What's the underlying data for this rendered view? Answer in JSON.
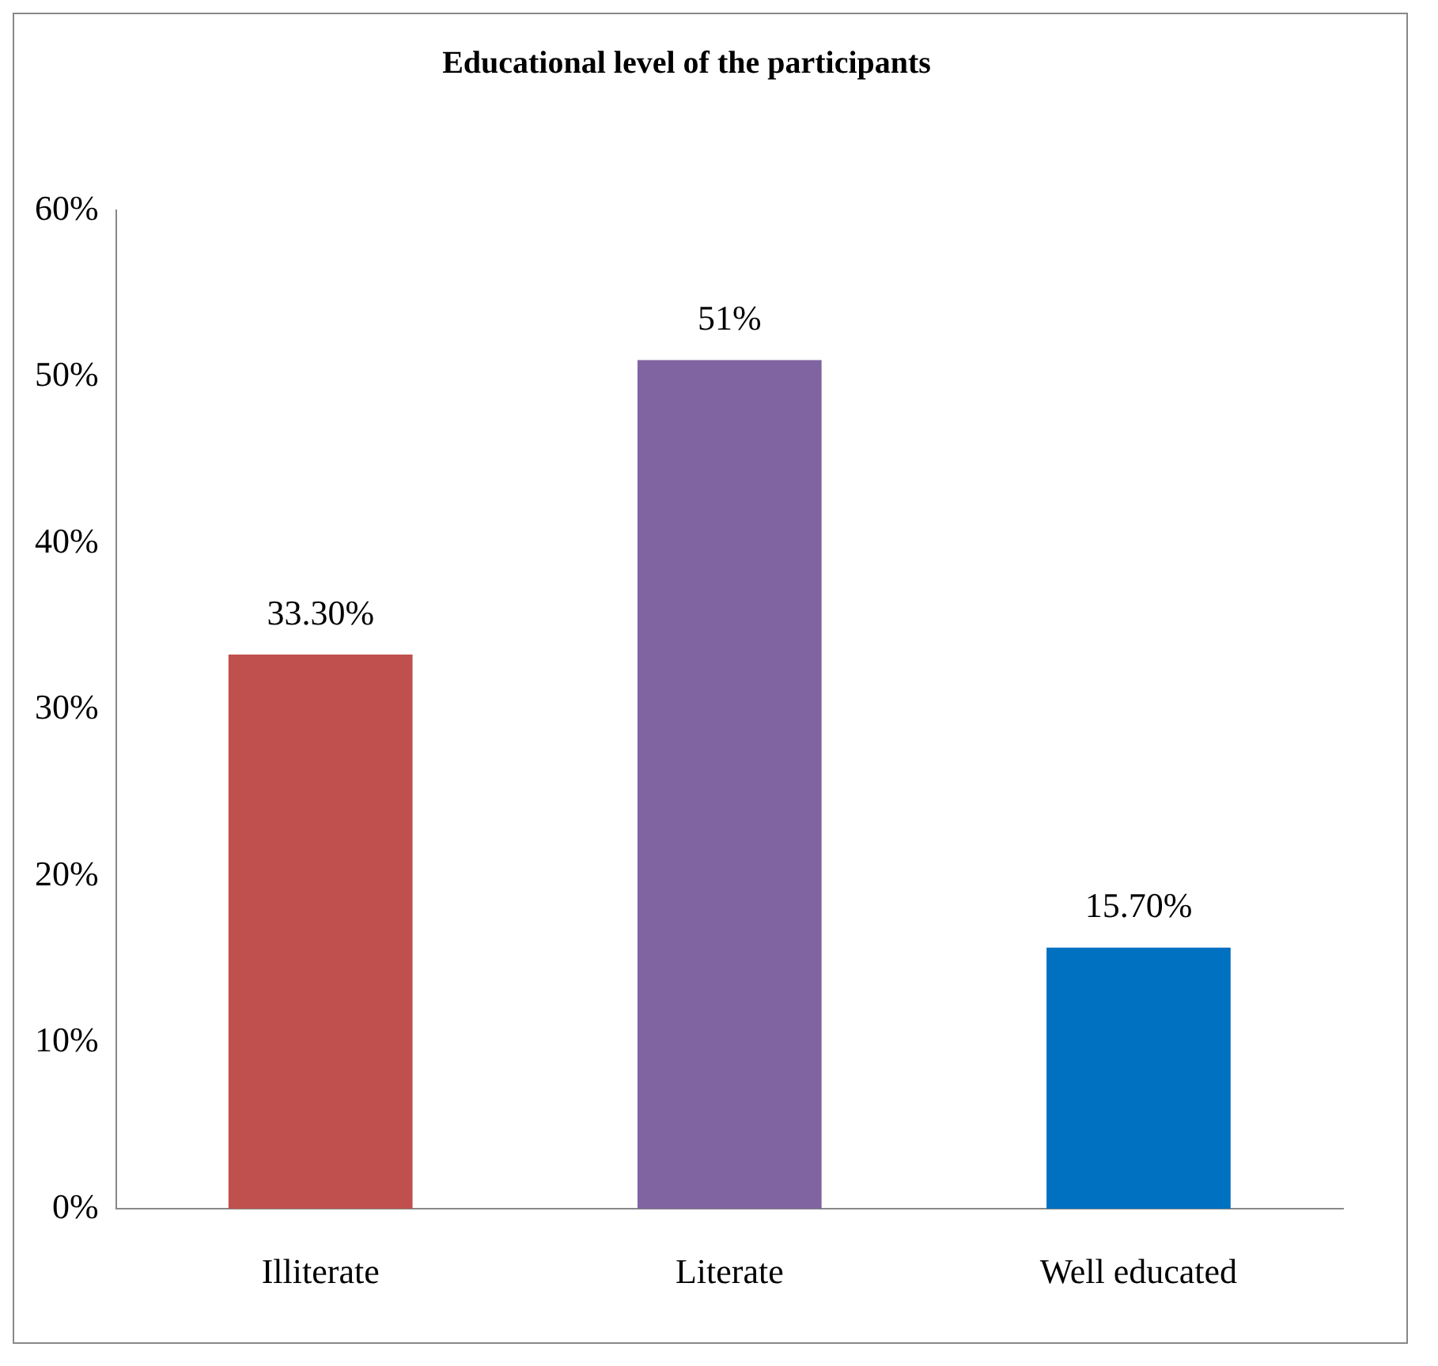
{
  "chart_data": {
    "type": "bar",
    "title": "Educational level of the participants",
    "categories": [
      "Illiterate",
      "Literate",
      "Well educated"
    ],
    "values": [
      33.3,
      51,
      15.7
    ],
    "colors": [
      "#c0504d",
      "#8064a2",
      "#0070c0"
    ],
    "value_labels": [
      "33.30%",
      "51%",
      "15.70%"
    ],
    "ylim": [
      0,
      60
    ],
    "yticks": [
      {
        "value": 0,
        "label": "0%"
      },
      {
        "value": 10,
        "label": "10%"
      },
      {
        "value": 20,
        "label": "20%"
      },
      {
        "value": 30,
        "label": "30%"
      },
      {
        "value": 40,
        "label": "40%"
      },
      {
        "value": 50,
        "label": "50%"
      },
      {
        "value": 60,
        "label": "60%"
      }
    ],
    "grid": false,
    "legend": false
  }
}
